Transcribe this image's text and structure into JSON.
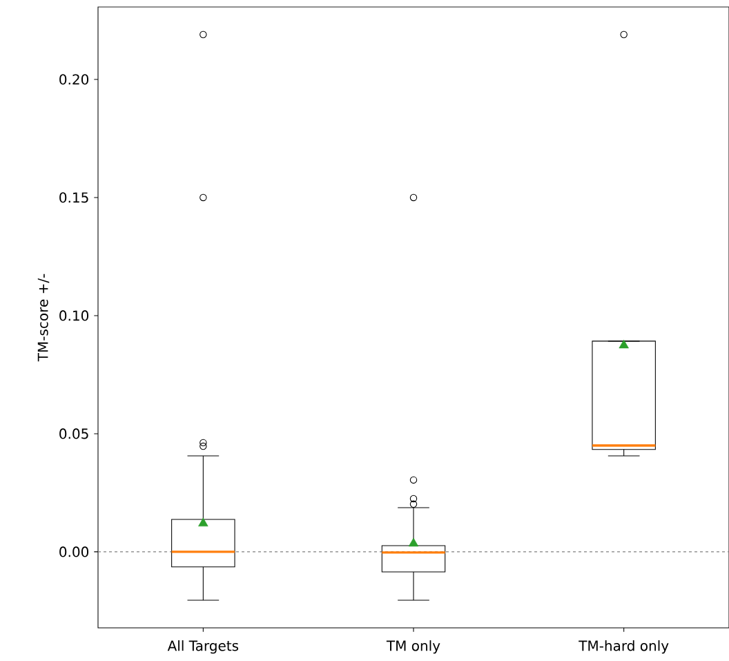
{
  "chart_data": {
    "type": "box",
    "ylabel": "TM-score +/-",
    "categories": [
      "All Targets",
      "TM only",
      "TM-hard only"
    ],
    "boxes": [
      {
        "low": -0.0205,
        "q1": -0.0064,
        "median": 0.0,
        "q3": 0.0137,
        "high": 0.0406,
        "mean": 0.012,
        "outliers": [
          0.0447,
          0.0462,
          0.15,
          0.219
        ]
      },
      {
        "low": -0.0205,
        "q1": -0.0085,
        "median": -0.0003,
        "q3": 0.0026,
        "high": 0.0187,
        "mean": 0.0035,
        "outliers": [
          0.0202,
          0.0225,
          0.0304,
          0.15
        ]
      },
      {
        "low": 0.0406,
        "q1": 0.0433,
        "median": 0.045,
        "q3": 0.0892,
        "high": 0.0892,
        "mean": 0.0874,
        "outliers": [
          0.219
        ]
      }
    ],
    "ylim": [
      -0.0322,
      0.2307
    ],
    "yticks": [
      {
        "value": 0.0,
        "label": "0.00"
      },
      {
        "value": 0.05,
        "label": "0.05"
      },
      {
        "value": 0.1,
        "label": "0.10"
      },
      {
        "value": 0.15,
        "label": "0.15"
      },
      {
        "value": 0.2,
        "label": "0.20"
      }
    ],
    "ref_lines": [
      {
        "axis": "y",
        "value": 0,
        "color": "#808080",
        "line_style": "dashed"
      }
    ],
    "marker": "triangle",
    "grid": false
  }
}
